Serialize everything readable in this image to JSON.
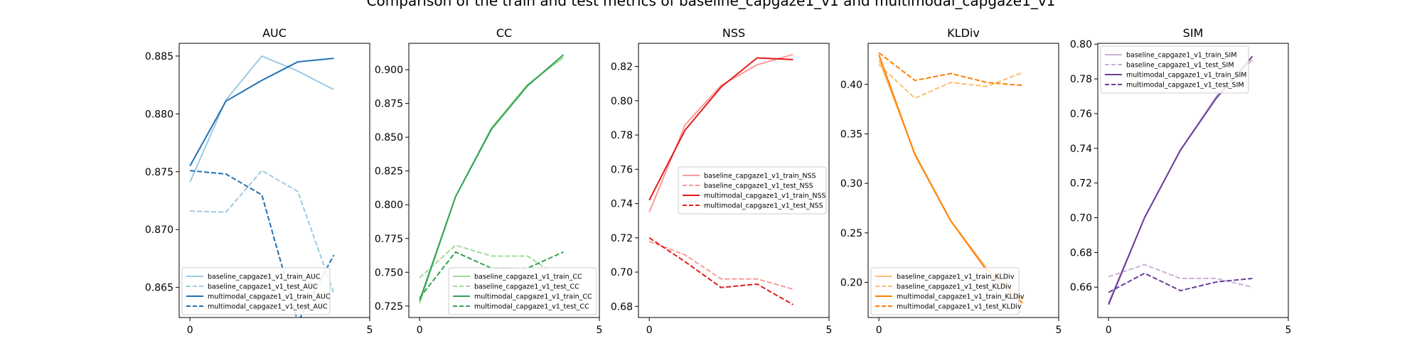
{
  "figure": {
    "suptitle": "Comparison of the train and test metrics of baseline_capgaze1_v1 and multimodal_capgaze1_v1"
  },
  "chart_data": [
    {
      "type": "line",
      "title": "AUC",
      "xlim": [
        -0.3,
        5
      ],
      "ylim": [
        0.8624,
        0.8861
      ],
      "xticks": [
        0,
        5
      ],
      "yticks": [
        0.865,
        0.87,
        0.875,
        0.88,
        0.885
      ],
      "ytick_decimals": 3,
      "legend_position": "lower-left",
      "x": [
        0,
        1,
        2,
        3,
        4
      ],
      "series": [
        {
          "name": "baseline_capgaze1_v1_train_AUC",
          "color": "#9ecae1",
          "dash": false,
          "values": [
            0.8741,
            0.8812,
            0.885,
            0.8837,
            0.8821
          ]
        },
        {
          "name": "baseline_capgaze1_v1_test_AUC",
          "color": "#9ecae1",
          "dash": true,
          "values": [
            0.8716,
            0.8715,
            0.8751,
            0.8733,
            0.8645
          ]
        },
        {
          "name": "multimodal_capgaze1_v1_train_AUC",
          "color": "#2171b5",
          "dash": false,
          "values": [
            0.8755,
            0.8811,
            0.8829,
            0.8845,
            0.8848
          ]
        },
        {
          "name": "multimodal_capgaze1_v1_test_AUC",
          "color": "#2171b5",
          "dash": true,
          "values": [
            0.8751,
            0.8748,
            0.873,
            0.862,
            0.8678
          ]
        }
      ]
    },
    {
      "type": "line",
      "title": "CC",
      "xlim": [
        -0.3,
        5
      ],
      "ylim": [
        0.7165,
        0.9195
      ],
      "xticks": [
        0,
        5
      ],
      "yticks": [
        0.725,
        0.75,
        0.775,
        0.8,
        0.825,
        0.85,
        0.875,
        0.9
      ],
      "ytick_decimals": 3,
      "legend_position": "lower-right",
      "x": [
        0,
        1,
        2,
        3,
        4
      ],
      "series": [
        {
          "name": "baseline_capgaze1_v1_train_CC",
          "color": "#a1d99b",
          "dash": false,
          "values": [
            0.727,
            0.806,
            0.857,
            0.889,
            0.909
          ]
        },
        {
          "name": "baseline_capgaze1_v1_test_CC",
          "color": "#a1d99b",
          "dash": true,
          "values": [
            0.746,
            0.77,
            0.762,
            0.762,
            0.744
          ]
        },
        {
          "name": "multimodal_capgaze1_v1_train_CC",
          "color": "#31a354",
          "dash": false,
          "values": [
            0.729,
            0.806,
            0.856,
            0.888,
            0.911
          ]
        },
        {
          "name": "multimodal_capgaze1_v1_test_CC",
          "color": "#31a354",
          "dash": true,
          "values": [
            0.731,
            0.765,
            0.753,
            0.753,
            0.765
          ]
        }
      ]
    },
    {
      "type": "line",
      "title": "NSS",
      "xlim": [
        -0.3,
        5
      ],
      "ylim": [
        0.6735,
        0.8335
      ],
      "xticks": [
        0,
        5
      ],
      "yticks": [
        0.68,
        0.7,
        0.72,
        0.74,
        0.76,
        0.78,
        0.8,
        0.82
      ],
      "ytick_decimals": 2,
      "legend_position": "center-right",
      "x": [
        0,
        1,
        2,
        3,
        4
      ],
      "series": [
        {
          "name": "baseline_capgaze1_v1_train_NSS",
          "color": "#fb9a99",
          "dash": false,
          "values": [
            0.735,
            0.786,
            0.809,
            0.821,
            0.827
          ]
        },
        {
          "name": "baseline_capgaze1_v1_test_NSS",
          "color": "#fb9a99",
          "dash": true,
          "values": [
            0.718,
            0.71,
            0.696,
            0.696,
            0.69
          ]
        },
        {
          "name": "multimodal_capgaze1_v1_train_NSS",
          "color": "#e31a1c",
          "dash": false,
          "values": [
            0.742,
            0.783,
            0.808,
            0.825,
            0.824
          ]
        },
        {
          "name": "multimodal_capgaze1_v1_test_NSS",
          "color": "#e31a1c",
          "dash": true,
          "values": [
            0.72,
            0.706,
            0.691,
            0.693,
            0.681
          ]
        }
      ]
    },
    {
      "type": "line",
      "title": "KLDiv",
      "xlim": [
        -0.3,
        5
      ],
      "ylim": [
        0.1645,
        0.4415
      ],
      "xticks": [
        0,
        5
      ],
      "yticks": [
        0.2,
        0.25,
        0.3,
        0.35,
        0.4
      ],
      "ytick_decimals": 2,
      "legend_position": "lower-left",
      "x": [
        0,
        1,
        2,
        3,
        4
      ],
      "series": [
        {
          "name": "baseline_capgaze1_v1_train_KLDiv",
          "color": "#fdbf6f",
          "dash": false,
          "values": [
            0.425,
            0.33,
            0.262,
            0.214,
            0.183
          ]
        },
        {
          "name": "baseline_capgaze1_v1_test_KLDiv",
          "color": "#fdbf6f",
          "dash": true,
          "values": [
            0.42,
            0.386,
            0.402,
            0.398,
            0.412
          ]
        },
        {
          "name": "multimodal_capgaze1_v1_train_KLDiv",
          "color": "#ff7f00",
          "dash": false,
          "values": [
            0.43,
            0.329,
            0.262,
            0.212,
            0.179
          ]
        },
        {
          "name": "multimodal_capgaze1_v1_test_KLDiv",
          "color": "#ff7f00",
          "dash": true,
          "values": [
            0.432,
            0.404,
            0.411,
            0.402,
            0.399
          ]
        }
      ]
    },
    {
      "type": "line",
      "title": "SIM",
      "xlim": [
        -0.3,
        5
      ],
      "ylim": [
        0.6425,
        0.8005
      ],
      "xticks": [
        0,
        5
      ],
      "yticks": [
        0.66,
        0.68,
        0.7,
        0.72,
        0.74,
        0.76,
        0.78,
        0.8
      ],
      "ytick_decimals": 2,
      "legend_position": "upper-left",
      "x": [
        0,
        1,
        2,
        3,
        4
      ],
      "series": [
        {
          "name": "baseline_capgaze1_v1_train_SIM",
          "color": "#cab2d6",
          "dash": false,
          "values": [
            0.651,
            0.7,
            0.739,
            0.77,
            0.791
          ]
        },
        {
          "name": "baseline_capgaze1_v1_test_SIM",
          "color": "#cab2d6",
          "dash": true,
          "values": [
            0.666,
            0.673,
            0.665,
            0.665,
            0.66
          ]
        },
        {
          "name": "multimodal_capgaze1_v1_train_SIM",
          "color": "#6a3d9a",
          "dash": false,
          "values": [
            0.65,
            0.7,
            0.739,
            0.769,
            0.793
          ]
        },
        {
          "name": "multimodal_capgaze1_v1_test_SIM",
          "color": "#6a3d9a",
          "dash": true,
          "values": [
            0.657,
            0.668,
            0.658,
            0.663,
            0.665
          ]
        }
      ]
    }
  ]
}
